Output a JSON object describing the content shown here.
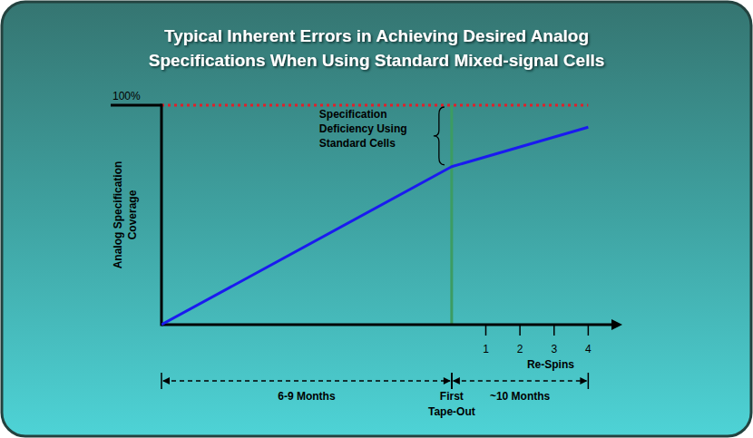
{
  "chart_data": {
    "type": "line",
    "title": [
      "Typical Inherent Errors in Achieving Desired Analog",
      "Specifications When Using Standard Mixed-signal Cells"
    ],
    "y_label": [
      "Analog Specification",
      "Coverage"
    ],
    "x_label": "Re-Spins",
    "x": [
      -8.5,
      0,
      4
    ],
    "values": [
      0,
      72,
      90
    ],
    "color": "#1a1af0",
    "xlim": [
      -8.5,
      5
    ],
    "xticks": [
      1,
      2,
      3,
      4
    ],
    "ylim": [
      0,
      100
    ],
    "yticks": [
      {
        "value": 100,
        "label": "100%"
      }
    ],
    "grid": true,
    "annotations": [
      {
        "type": "brace",
        "lines": [
          "Specification",
          "Deficiency Using",
          "Standard Cells"
        ],
        "x": 0,
        "y_from": 72,
        "y_to": 100
      },
      {
        "type": "vline",
        "lines": [
          "First",
          "Tape-Out"
        ],
        "x": 0
      },
      {
        "type": "span",
        "lines": [
          "6-9 Months"
        ],
        "x_from": -8.5,
        "x_to": 0
      },
      {
        "type": "span",
        "lines": [
          "~10 Months"
        ],
        "x_from": 0,
        "x_to": 4
      }
    ]
  }
}
